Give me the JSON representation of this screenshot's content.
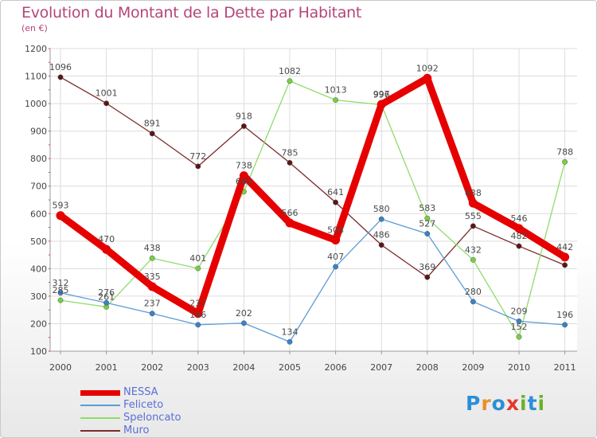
{
  "header": {
    "title": "Evolution du Montant de la Dette par Habitant",
    "subtitle": "(en €)"
  },
  "logo": {
    "text": "Proxiti",
    "letter_colors": [
      "#2a8fd8",
      "#e9902a",
      "#2a8fd8",
      "#e33a2b",
      "#6ab22b",
      "#2a8fd8",
      "#6ab22b"
    ]
  },
  "chart_data": {
    "type": "line",
    "x": [
      "2000",
      "2001",
      "2002",
      "2003",
      "2004",
      "2005",
      "2006",
      "2007",
      "2008",
      "2009",
      "2010",
      "2011"
    ],
    "ylim": [
      100,
      1200
    ],
    "yticks": [
      "100",
      "200",
      "300",
      "400",
      "500",
      "600",
      "700",
      "800",
      "900",
      "1000",
      "1100",
      "1200"
    ],
    "grid": true,
    "legend_position": "bottom-left",
    "series": [
      {
        "name": "Muro",
        "color": "#7a2b2b",
        "marker_color": "#5a1616",
        "values": [
          1096,
          1001,
          891,
          772,
          918,
          785,
          641,
          486,
          369,
          555,
          482,
          413
        ],
        "labels": [
          "1096",
          "1001",
          "891",
          "772",
          "918",
          "785",
          "641",
          "486",
          "369",
          "555",
          "482",
          ""
        ]
      },
      {
        "name": "Speloncato",
        "color": "#8fdc6a",
        "marker_color": "#76d13f",
        "values": [
          285,
          261,
          438,
          401,
          680,
          1082,
          1013,
          996,
          583,
          432,
          152,
          788
        ],
        "labels": [
          "285",
          "261",
          "438",
          "401",
          "680",
          "1082",
          "1013",
          "996",
          "583",
          "432",
          "152",
          "788"
        ]
      },
      {
        "name": "Feliceto",
        "color": "#5b9bd5",
        "marker_color": "#3a82c8",
        "values": [
          312,
          276,
          237,
          196,
          202,
          134,
          407,
          580,
          527,
          280,
          209,
          196
        ],
        "labels": [
          "312",
          "276",
          "237",
          "196",
          "202",
          "134",
          "407",
          "580",
          "527",
          "280",
          "209",
          "196"
        ]
      },
      {
        "name": "NESSA",
        "color": "#e60000",
        "marker_color": "#e60000",
        "values": [
          593,
          470,
          335,
          237,
          738,
          566,
          504,
          997,
          1092,
          638,
          546,
          442
        ],
        "labels": [
          "593",
          "470",
          "335",
          "237",
          "738",
          "566",
          "504",
          "997",
          "1092",
          "638",
          "546",
          "442"
        ]
      }
    ],
    "legend_order": [
      "NESSA",
      "Feliceto",
      "Speloncato",
      "Muro"
    ]
  }
}
